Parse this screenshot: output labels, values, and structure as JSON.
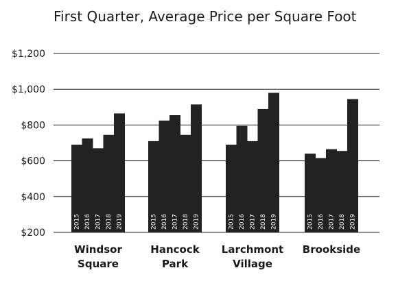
{
  "chart_data": {
    "type": "bar",
    "title": "First Quarter, Average Price per Square Foot",
    "xlabel": "",
    "ylabel": "",
    "ylim": [
      200,
      1200
    ],
    "yticks": [
      200,
      400,
      600,
      800,
      1000,
      1200
    ],
    "ytick_labels": [
      "$200",
      "$400",
      "$600",
      "$800",
      "$1,000",
      "$1,200"
    ],
    "grid": true,
    "bar_color": "#222222",
    "series_labels": [
      "2015",
      "2016",
      "2017",
      "2018",
      "2019"
    ],
    "categories": [
      {
        "name": [
          "Windsor",
          "Square"
        ],
        "values": [
          690,
          725,
          670,
          745,
          865
        ]
      },
      {
        "name": [
          "Hancock",
          "Park"
        ],
        "values": [
          710,
          825,
          855,
          745,
          915
        ]
      },
      {
        "name": [
          "Larchmont",
          "Village"
        ],
        "values": [
          690,
          795,
          710,
          890,
          980
        ]
      },
      {
        "name": [
          "Brookside"
        ],
        "values": [
          640,
          615,
          665,
          655,
          945
        ]
      }
    ]
  }
}
